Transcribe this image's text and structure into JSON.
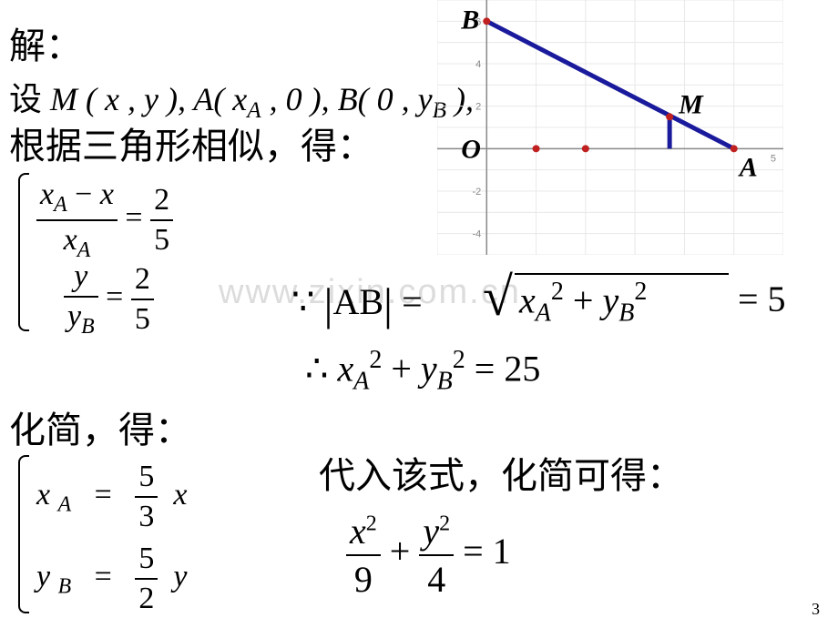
{
  "line1": "解：",
  "line2_pre": "设 ",
  "line2_m": "M",
  "line2_m_args": " ( x , y ), ",
  "line2_a": "A",
  "line2_a_args": "( x",
  "line2_a_sub": "A",
  "line2_a_args2": " , 0 ), ",
  "line2_b": "B",
  "line2_b_args": "( 0 , y",
  "line2_b_sub": "B",
  "line2_b_args2": " ),",
  "line3": "根据三角形相似，得：",
  "sys1_eq1_num_a": "x",
  "sys1_eq1_num_sub": "A",
  "sys1_eq1_num_op": " − ",
  "sys1_eq1_num_b": "x",
  "sys1_eq1_den": "x",
  "sys1_eq1_den_sub": "A",
  "sys1_rhs_num": "2",
  "sys1_rhs_den": "5",
  "sys1_eq2_num": "y",
  "sys1_eq2_den": "y",
  "sys1_eq2_den_sub": "B",
  "sys2_rhs_num": "2",
  "sys2_rhs_den": "5",
  "line4": "化简，得：",
  "sys2_eq1_l": "x",
  "sys2_eq1_l_sub": "A",
  "sys2_eq1_r_num": "5",
  "sys2_eq1_r_den": "3",
  "sys2_eq1_r_x": "x",
  "sys2_eq2_l": "y",
  "sys2_eq2_l_sub": "B",
  "sys2_eq2_r_num": "5",
  "sys2_eq2_r_den": "2",
  "sys2_eq2_r_y": "y",
  "ab_pre": "∵ ",
  "ab_label": "AB",
  "ab_eq": " = ",
  "ab_sqrt_x": "x",
  "ab_sqrt_xsub": "A",
  "ab_sqrt_plus": " + ",
  "ab_sqrt_y": "y",
  "ab_sqrt_ysub": "B",
  "ab_sqrt_pow": "2",
  "ab_rhs": " = 5",
  "ab2_pre": "∴ ",
  "ab2_x": "x",
  "ab2_xsub": "A",
  "ab2_plus": " + ",
  "ab2_y": "y",
  "ab2_ysub": "B",
  "ab2_pow": "2",
  "ab2_rhs": " = 25",
  "line5": "代入该式，化简可得：",
  "final_x": "x",
  "final_xpow": "2",
  "final_xden": "9",
  "final_plus": " + ",
  "final_y": "y",
  "final_ypow": "2",
  "final_yden": "4",
  "final_rhs": " = 1",
  "watermark": "www.zixin.com.cn",
  "page_number": "3",
  "graph": {
    "grid_color": "#e8e8e8",
    "axis_color": "#888888",
    "line_color": "#1a1a9c",
    "point_color": "#c02020",
    "label_color": "#000000",
    "labels": {
      "O": "O",
      "A": "A",
      "B": "B",
      "M": "M"
    },
    "points": {
      "B": [
        0,
        6
      ],
      "A": [
        5,
        0
      ],
      "M": [
        3.7,
        1.5
      ],
      "O": [
        0,
        0
      ],
      "p1": [
        1,
        0
      ],
      "p2": [
        2,
        0
      ]
    },
    "x_range": [
      -1,
      6
    ],
    "y_range": [
      -5,
      7
    ],
    "y_ticks": [
      -4,
      -2,
      2,
      4,
      6
    ]
  }
}
